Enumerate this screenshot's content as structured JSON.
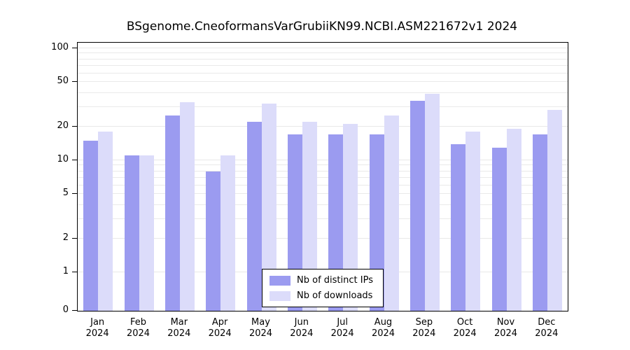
{
  "chart_data": {
    "type": "bar",
    "title": "BSgenome.CneoformansVarGrubiiKN99.NCBI.ASM221672v1 2024",
    "scale": "log",
    "categories": [
      "Jan",
      "Feb",
      "Mar",
      "Apr",
      "May",
      "Jun",
      "Jul",
      "Aug",
      "Sep",
      "Oct",
      "Nov",
      "Dec"
    ],
    "year_label": "2024",
    "series": [
      {
        "name": "Nb of distinct IPs",
        "color": "#9b9bf0",
        "values": [
          15,
          11,
          25,
          8,
          22,
          17,
          17,
          17,
          34,
          14,
          13,
          17
        ]
      },
      {
        "name": "Nb of downloads",
        "color": "#dcdcfa",
        "values": [
          18,
          11,
          33,
          11,
          32,
          22,
          21,
          25,
          39,
          18,
          19,
          28
        ]
      }
    ],
    "yticks": [
      0,
      1,
      2,
      5,
      10,
      20,
      50,
      100
    ],
    "minor_gridlines": [
      1,
      2,
      3,
      4,
      5,
      6,
      7,
      8,
      9,
      10,
      20,
      30,
      40,
      50,
      60,
      70,
      80,
      90,
      100
    ],
    "ylim": [
      0,
      100
    ],
    "legend_position": "bottom-center",
    "grid": "on"
  }
}
